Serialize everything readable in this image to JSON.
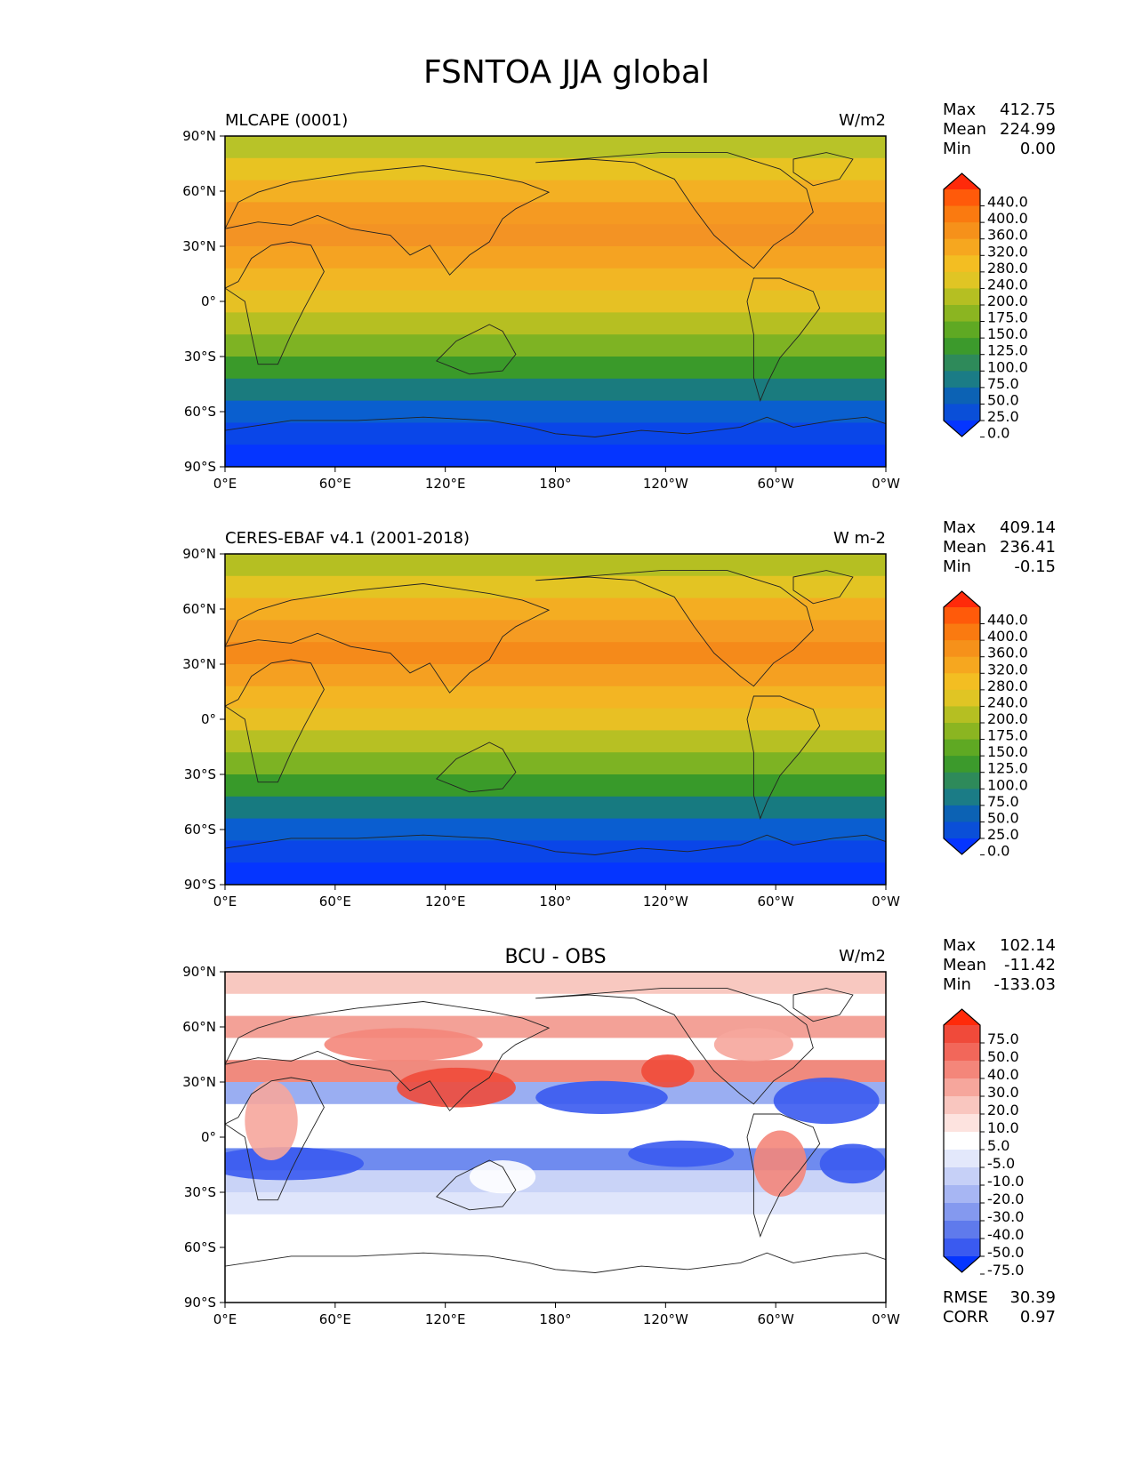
{
  "figure": {
    "title": "FSNTOA JJA global"
  },
  "axes": {
    "lat_ticks": [
      "90°N",
      "60°N",
      "30°N",
      "0°",
      "30°S",
      "60°S",
      "90°S"
    ],
    "lon_ticks": [
      "0°E",
      "60°E",
      "120°E",
      "180°",
      "120°W",
      "60°W",
      "0°W"
    ]
  },
  "panels": [
    {
      "id": "model",
      "title_left": "MLCAPE (0001)",
      "title_center": "",
      "units": "W/m2",
      "stats": [
        {
          "label": "Max",
          "value": "412.75"
        },
        {
          "label": "Mean",
          "value": "224.99"
        },
        {
          "label": "Min",
          "value": "0.00"
        }
      ],
      "colorbar": {
        "levels": [
          "440.0",
          "400.0",
          "360.0",
          "320.0",
          "280.0",
          "240.0",
          "200.0",
          "175.0",
          "150.0",
          "125.0",
          "100.0",
          "75.0",
          "50.0",
          "25.0",
          "0.0"
        ],
        "colors": [
          "#ff2a0a",
          "#ff5a0a",
          "#fa7a10",
          "#f6911a",
          "#f6a71f",
          "#f3be22",
          "#e0c524",
          "#b5bf22",
          "#8bb521",
          "#5fa923",
          "#3c9a2c",
          "#2e8a5a",
          "#1b7c86",
          "#0c62b4",
          "#0a4fd8",
          "#0535ff"
        ]
      },
      "field_colors": [
        "#b8c328",
        "#e8c322",
        "#f3b023",
        "#f59a22",
        "#f39324",
        "#f5a322",
        "#f2b624",
        "#e6c124",
        "#b6bf22",
        "#7eb323",
        "#3a9a2a",
        "#1a7b7e",
        "#0a5fcf",
        "#0a46e8",
        "#0535ff"
      ],
      "extras": []
    },
    {
      "id": "obs",
      "title_left": "CERES-EBAF v4.1 (2001-2018)",
      "title_center": "",
      "units": "W m-2",
      "stats": [
        {
          "label": "Max",
          "value": "409.14"
        },
        {
          "label": "Mean",
          "value": "236.41"
        },
        {
          "label": "Min",
          "value": "-0.15"
        }
      ],
      "colorbar": {
        "levels": [
          "440.0",
          "400.0",
          "360.0",
          "320.0",
          "280.0",
          "240.0",
          "200.0",
          "175.0",
          "150.0",
          "125.0",
          "100.0",
          "75.0",
          "50.0",
          "25.0",
          "0.0"
        ],
        "colors": [
          "#ff2a0a",
          "#ff5a0a",
          "#fa7a10",
          "#f6911a",
          "#f6a71f",
          "#f3be22",
          "#e0c524",
          "#b5bf22",
          "#8bb521",
          "#5fa923",
          "#3c9a2c",
          "#2e8a5a",
          "#1b7c86",
          "#0c62b4",
          "#0a4fd8",
          "#0535ff"
        ]
      },
      "field_colors": [
        "#b5bf22",
        "#e3c423",
        "#f4ad22",
        "#f59b22",
        "#f58a1a",
        "#f5a021",
        "#f3b523",
        "#e8c024",
        "#b7c023",
        "#7db323",
        "#389a2a",
        "#177a80",
        "#0a5ed0",
        "#0a46e8",
        "#0535ff"
      ],
      "extras": []
    },
    {
      "id": "diff",
      "title_left": "",
      "title_center": "BCU - OBS",
      "units": "W/m2",
      "stats": [
        {
          "label": "Max",
          "value": "102.14"
        },
        {
          "label": "Mean",
          "value": "-11.42"
        },
        {
          "label": "Min",
          "value": "-133.03"
        }
      ],
      "colorbar": {
        "levels": [
          "75.0",
          "50.0",
          "40.0",
          "30.0",
          "20.0",
          "10.0",
          "5.0",
          "-5.0",
          "-10.0",
          "-20.0",
          "-30.0",
          "-40.0",
          "-50.0",
          "-75.0"
        ],
        "colors": [
          "#ff2a0a",
          "#f04a3a",
          "#f2675a",
          "#f4867a",
          "#f6a69c",
          "#f9c6bf",
          "#fde3df",
          "#ffffff",
          "#e3e8fb",
          "#c6d0f7",
          "#a7b6f3",
          "#8499ef",
          "#5f7aec",
          "#3a5af0",
          "#0535ff"
        ]
      },
      "field_colors": [
        "#f8c8c0",
        "#ffffff",
        "#f3a197",
        "#ffffff",
        "#f08a7e",
        "#9aaef2",
        "#ffffff",
        "#ffffff",
        "#6f8bef",
        "#c9d3f7",
        "#dfe5fb",
        "#ffffff",
        "#ffffff",
        "#ffffff",
        "#ffffff"
      ],
      "extras": [
        {
          "label": "RMSE",
          "value": "30.39"
        },
        {
          "label": "CORR",
          "value": "0.97"
        }
      ]
    }
  ]
}
